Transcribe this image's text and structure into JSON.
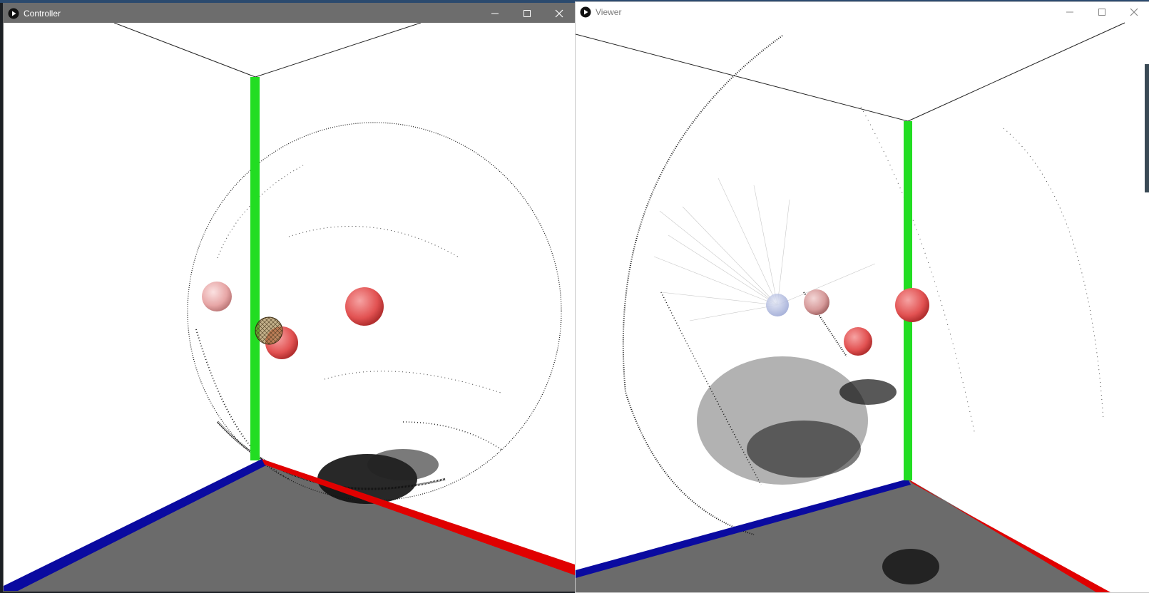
{
  "windows": {
    "controller": {
      "title": "Controller"
    },
    "viewer": {
      "title": "Viewer"
    }
  },
  "window_controls": [
    "minimize-icon",
    "maximize-icon",
    "close-icon"
  ],
  "scene": {
    "axis_colors": {
      "x_axis": "#e00000",
      "y_axis": "#22dd22",
      "z_axis": "#0a0aa0",
      "floor": "#6b6b6b",
      "sphere_red": "#e85a5a",
      "sphere_pink": "#e8a8a8",
      "sphere_blue": "#aab4dd",
      "point_cloud": "#000000",
      "ray_lines": "#c8c8c8"
    }
  },
  "icons": {
    "app": "processing-play-icon"
  }
}
